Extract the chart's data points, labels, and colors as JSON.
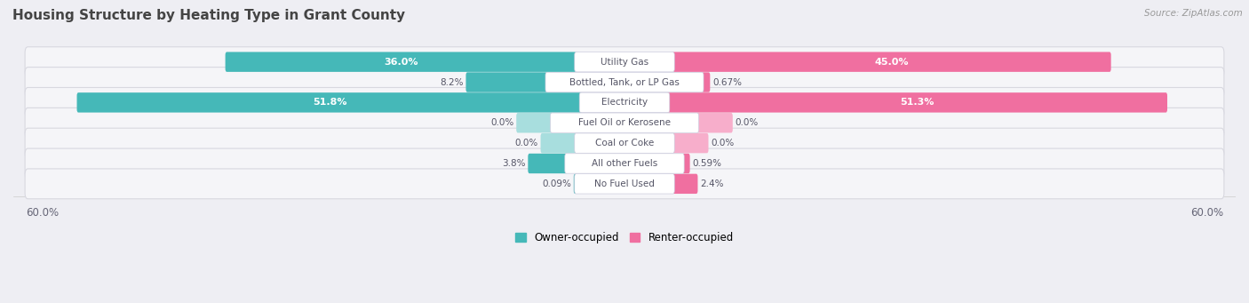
{
  "title": "Housing Structure by Heating Type in Grant County",
  "source": "Source: ZipAtlas.com",
  "categories": [
    "Utility Gas",
    "Bottled, Tank, or LP Gas",
    "Electricity",
    "Fuel Oil or Kerosene",
    "Coal or Coke",
    "All other Fuels",
    "No Fuel Used"
  ],
  "owner_values": [
    36.0,
    8.2,
    51.8,
    0.0,
    0.0,
    3.8,
    0.09
  ],
  "renter_values": [
    45.0,
    0.67,
    51.3,
    0.0,
    0.0,
    0.59,
    2.4
  ],
  "owner_color": "#45b8b8",
  "owner_color_light": "#a8dede",
  "renter_color": "#f06fa0",
  "renter_color_light": "#f7aecb",
  "owner_label": "Owner-occupied",
  "renter_label": "Renter-occupied",
  "max_value": 60.0,
  "bg_color": "#eeeef3",
  "row_bg_color": "#f5f5f8",
  "row_border_color": "#d8d8e0",
  "title_color": "#444444",
  "label_color": "#555566",
  "axis_label_color": "#666677",
  "min_stub": 3.5,
  "label_widths": {
    "Utility Gas": 10.0,
    "Bottled, Tank, or LP Gas": 16.0,
    "Electricity": 9.0,
    "Fuel Oil or Kerosene": 15.0,
    "Coal or Coke": 10.0,
    "All other Fuels": 12.0,
    "No Fuel Used": 10.0
  }
}
